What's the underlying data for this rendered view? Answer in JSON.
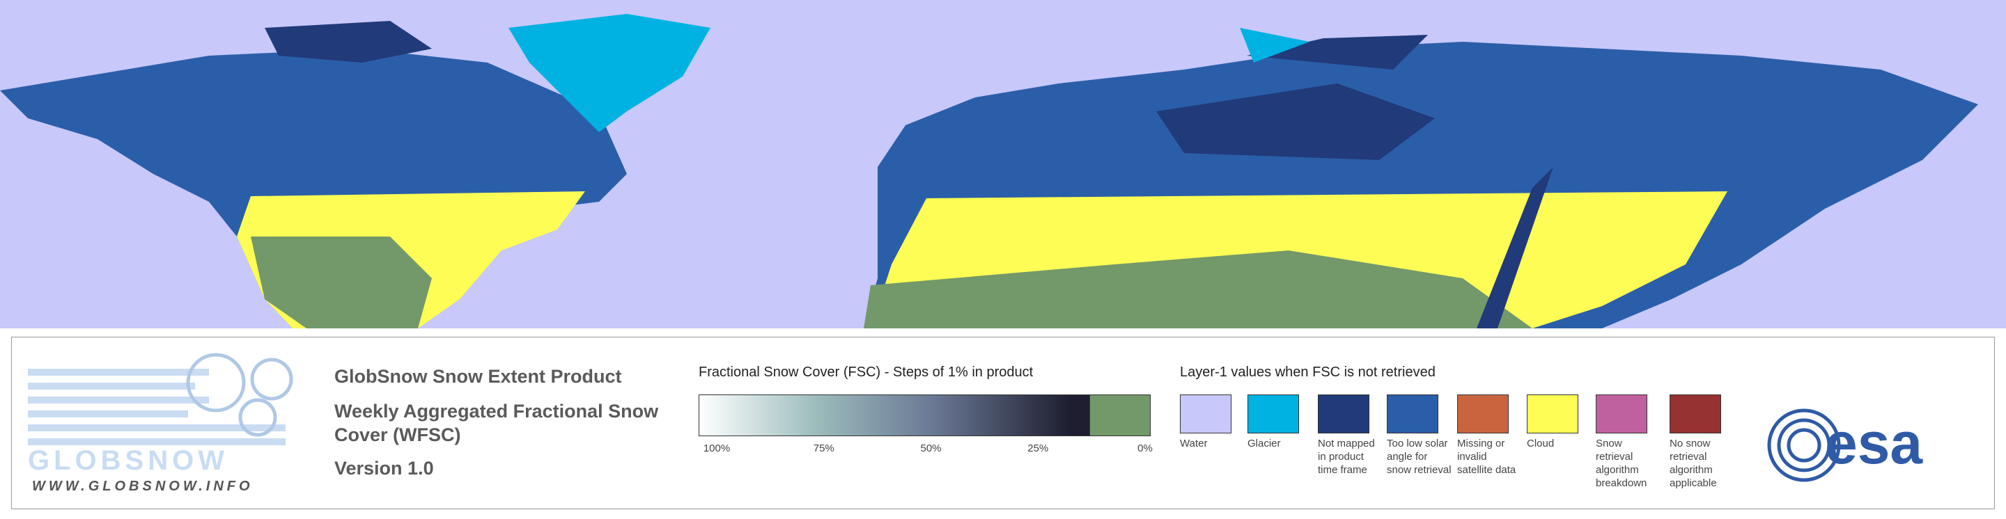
{
  "logo": {
    "name": "GLOBSNOW",
    "url": "WWW.GLOBSNOW.INFO"
  },
  "header": {
    "title": "GlobSnow Snow Extent Product",
    "subtitle": "Weekly Aggregated Fractional Snow Cover (WFSC)",
    "version": "Version 1.0"
  },
  "fsc_legend": {
    "title": "Fractional Snow Cover (FSC) - Steps of 1% in product",
    "ticks": [
      "100%",
      "75%",
      "50%",
      "25%",
      "0%"
    ]
  },
  "layer_legend": {
    "title": "Layer-1 values when FSC is not retrieved",
    "items": [
      {
        "label": "Water",
        "color": "#c8c8fa"
      },
      {
        "label": "Glacier",
        "color": "#00b2e2"
      },
      {
        "label": "Not mapped in product time frame",
        "color": "#213a7a"
      },
      {
        "label": "Too low solar angle for snow retrieval",
        "color": "#2b5ea9"
      },
      {
        "label": "Missing or invalid satellite data",
        "color": "#c9643f"
      },
      {
        "label": "Cloud",
        "color": "#fdfd55"
      },
      {
        "label": "Snow retrieval algorithm breakdown",
        "color": "#c0619f"
      },
      {
        "label": "No snow retrieval algorithm applicable",
        "color": "#973232"
      }
    ]
  },
  "agency_logo": "esa"
}
